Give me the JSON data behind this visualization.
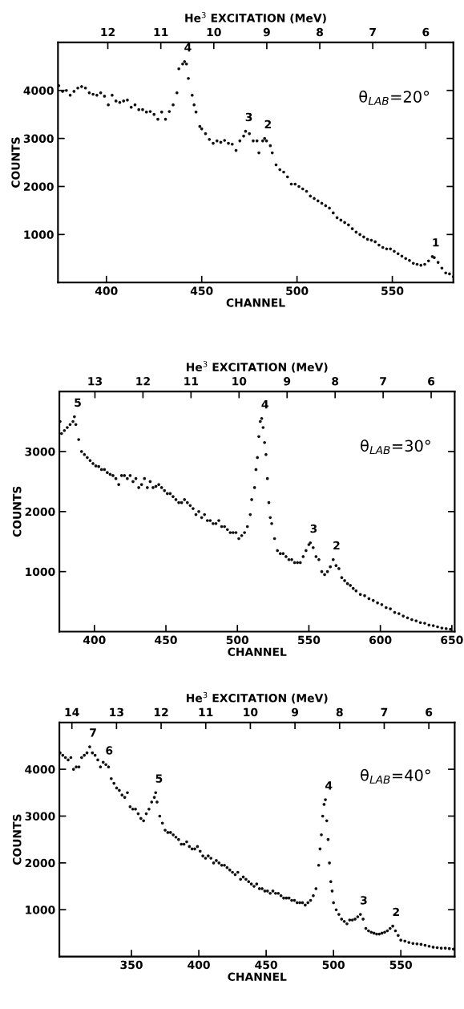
{
  "chart_data": [
    {
      "type": "scatter",
      "xlabel": "CHANNEL",
      "ylabel": "COUNTS",
      "x2label": "He$^{3}$ EXCITATION (MeV)",
      "marker": "circle",
      "grid": false,
      "legend": false,
      "xlim": [
        374.6,
        582
      ],
      "xticks": [
        400,
        450,
        500,
        550
      ],
      "ylim": [
        0,
        5000
      ],
      "yticks": [
        1000,
        2000,
        3000,
        4000
      ],
      "x2lim": [
        12.94,
        5.48
      ],
      "x2ticks": [
        12,
        11,
        10,
        9,
        8,
        7,
        6
      ],
      "series": [
        {
          "color": "#111111",
          "x": [
            375,
            377,
            379,
            381,
            383,
            385,
            387,
            389,
            391,
            393,
            395,
            397,
            399,
            401,
            403,
            405,
            407,
            409,
            411,
            413,
            415,
            417,
            419,
            421,
            423,
            425,
            427,
            429,
            431,
            433,
            435,
            437,
            438,
            440,
            441,
            442,
            443,
            445,
            446,
            447,
            449,
            450,
            452,
            454,
            456,
            458,
            460,
            462,
            464,
            466,
            468,
            470,
            472,
            473,
            475,
            477,
            479,
            480,
            482,
            483,
            484,
            486,
            487,
            489,
            491,
            493,
            495,
            497,
            499,
            501,
            503,
            505,
            507,
            509,
            511,
            513,
            515,
            517,
            519,
            521,
            523,
            525,
            527,
            529,
            531,
            533,
            535,
            537,
            539,
            541,
            543,
            545,
            547,
            549,
            551,
            553,
            555,
            557,
            559,
            561,
            563,
            565,
            567,
            569,
            571,
            572,
            574,
            576,
            578,
            580,
            582
          ],
          "values": [
            4100,
            3980,
            4000,
            3900,
            3980,
            4050,
            4080,
            4050,
            3950,
            3920,
            3900,
            3950,
            3880,
            3700,
            3900,
            3780,
            3750,
            3780,
            3800,
            3650,
            3700,
            3600,
            3600,
            3550,
            3560,
            3500,
            3400,
            3550,
            3400,
            3560,
            3700,
            3950,
            4450,
            4550,
            4600,
            4550,
            4250,
            3900,
            3700,
            3550,
            3250,
            3200,
            3100,
            2980,
            2900,
            2950,
            2920,
            2960,
            2900,
            2880,
            2750,
            2950,
            3050,
            3150,
            3100,
            2950,
            2950,
            2700,
            2950,
            3000,
            2950,
            2850,
            2700,
            2450,
            2350,
            2300,
            2200,
            2050,
            2050,
            2000,
            1950,
            1900,
            1800,
            1750,
            1700,
            1650,
            1600,
            1550,
            1450,
            1350,
            1300,
            1250,
            1200,
            1120,
            1050,
            1000,
            950,
            900,
            880,
            850,
            780,
            730,
            700,
            700,
            650,
            600,
            550,
            500,
            460,
            400,
            380,
            360,
            380,
            450,
            540,
            520,
            420,
            300,
            200,
            180,
            120
          ]
        }
      ],
      "annotations": [
        {
          "text": "4",
          "x": 441,
          "y": 4600
        },
        {
          "text": "3",
          "x": 473,
          "y": 3150
        },
        {
          "text": "2",
          "x": 483,
          "y": 3000
        },
        {
          "text": "1",
          "x": 571,
          "y": 540
        },
        "θ$_{LAB}$=20°"
      ]
    },
    {
      "type": "scatter",
      "xlabel": "CHANNEL",
      "ylabel": "COUNTS",
      "x2label": "He$^{3}$ EXCITATION (MeV)",
      "marker": "circle",
      "grid": false,
      "legend": false,
      "xlim": [
        375.5,
        652
      ],
      "xticks": [
        400,
        450,
        500,
        550,
        600,
        650
      ],
      "ylim": [
        0,
        4000
      ],
      "yticks": [
        1000,
        2000,
        3000
      ],
      "x2lim": [
        13.74,
        5.51
      ],
      "x2ticks": [
        13,
        12,
        11,
        10,
        9,
        8,
        7,
        6
      ],
      "series": [
        {
          "color": "#111111",
          "x": [
            376,
            377,
            379,
            381,
            383,
            385,
            386,
            387,
            389,
            391,
            393,
            395,
            397,
            399,
            401,
            403,
            405,
            407,
            409,
            411,
            413,
            415,
            417,
            419,
            421,
            423,
            425,
            427,
            429,
            431,
            433,
            435,
            437,
            439,
            441,
            443,
            445,
            447,
            449,
            451,
            453,
            455,
            457,
            459,
            461,
            463,
            465,
            467,
            469,
            471,
            473,
            475,
            477,
            479,
            481,
            483,
            485,
            487,
            489,
            491,
            493,
            495,
            497,
            499,
            501,
            503,
            505,
            507,
            509,
            510,
            512,
            513,
            514,
            515,
            516,
            517,
            518,
            519,
            520,
            521,
            522,
            523,
            524,
            526,
            528,
            530,
            532,
            534,
            536,
            538,
            540,
            542,
            544,
            546,
            548,
            550,
            551,
            553,
            555,
            557,
            559,
            561,
            563,
            565,
            567,
            569,
            571,
            573,
            575,
            577,
            579,
            581,
            583,
            586,
            589,
            592,
            595,
            598,
            601,
            604,
            607,
            610,
            613,
            616,
            619,
            622,
            625,
            628,
            631,
            634,
            637,
            640,
            643,
            646,
            649
          ],
          "values": [
            3500,
            3300,
            3350,
            3400,
            3450,
            3500,
            3580,
            3450,
            3200,
            3000,
            2950,
            2900,
            2850,
            2800,
            2760,
            2750,
            2700,
            2700,
            2650,
            2620,
            2600,
            2550,
            2450,
            2600,
            2600,
            2550,
            2600,
            2500,
            2550,
            2400,
            2450,
            2550,
            2400,
            2500,
            2400,
            2420,
            2450,
            2400,
            2350,
            2300,
            2300,
            2250,
            2200,
            2150,
            2150,
            2200,
            2150,
            2100,
            2050,
            1950,
            2000,
            1900,
            1950,
            1850,
            1850,
            1800,
            1800,
            1850,
            1750,
            1750,
            1700,
            1650,
            1650,
            1650,
            1550,
            1600,
            1650,
            1750,
            1950,
            2200,
            2400,
            2700,
            2900,
            3250,
            3500,
            3550,
            3400,
            3150,
            2950,
            2550,
            2150,
            1900,
            1800,
            1550,
            1350,
            1300,
            1300,
            1250,
            1200,
            1200,
            1150,
            1150,
            1150,
            1250,
            1350,
            1450,
            1480,
            1400,
            1250,
            1200,
            1000,
            950,
            1000,
            1080,
            1200,
            1100,
            1050,
            900,
            850,
            800,
            770,
            720,
            680,
            620,
            600,
            550,
            520,
            480,
            450,
            400,
            380,
            320,
            300,
            260,
            230,
            200,
            180,
            150,
            140,
            110,
            100,
            80,
            60,
            50,
            40
          ]
        }
      ],
      "annotations": [
        {
          "text": "5",
          "x": 386,
          "y": 3580
        },
        {
          "text": "4",
          "x": 517,
          "y": 3550
        },
        {
          "text": "3",
          "x": 551,
          "y": 1480
        },
        {
          "text": "2",
          "x": 567,
          "y": 1200
        },
        "θ$_{LAB}$=30°"
      ]
    },
    {
      "type": "scatter",
      "xlabel": "CHANNEL",
      "ylabel": "COUNTS",
      "x2label": "He$^{3}$ EXCITATION (MeV)",
      "marker": "circle",
      "grid": false,
      "legend": false,
      "xlim": [
        296.5,
        590
      ],
      "xticks": [
        350,
        400,
        450,
        500,
        550
      ],
      "ylim": [
        0,
        5000
      ],
      "yticks": [
        1000,
        2000,
        3000,
        4000
      ],
      "x2lim": [
        14.28,
        5.42
      ],
      "x2ticks": [
        14,
        13,
        12,
        11,
        10,
        9,
        8,
        7,
        6
      ],
      "series": [
        {
          "color": "#111111",
          "x": [
            297,
            299,
            301,
            303,
            305,
            307,
            309,
            311,
            313,
            315,
            317,
            319,
            321,
            323,
            325,
            327,
            329,
            331,
            333,
            335,
            337,
            339,
            341,
            343,
            345,
            347,
            349,
            351,
            353,
            355,
            357,
            359,
            361,
            363,
            365,
            367,
            368,
            369,
            371,
            373,
            375,
            377,
            379,
            381,
            383,
            385,
            387,
            389,
            391,
            393,
            395,
            397,
            399,
            401,
            403,
            405,
            407,
            409,
            411,
            413,
            415,
            417,
            419,
            421,
            423,
            425,
            427,
            429,
            431,
            433,
            435,
            437,
            439,
            441,
            443,
            445,
            447,
            449,
            451,
            453,
            455,
            457,
            459,
            461,
            463,
            465,
            467,
            469,
            471,
            473,
            475,
            477,
            479,
            481,
            483,
            485,
            487,
            489,
            490,
            491,
            492,
            493,
            494,
            495,
            496,
            497,
            498,
            499,
            500,
            502,
            504,
            506,
            508,
            510,
            512,
            514,
            516,
            518,
            520,
            522,
            524,
            526,
            528,
            530,
            532,
            534,
            536,
            538,
            540,
            542,
            544,
            546,
            548,
            550,
            553,
            556,
            559,
            562,
            565,
            568,
            571,
            574,
            577,
            580,
            583,
            586,
            589
          ],
          "values": [
            4350,
            4300,
            4250,
            4200,
            4250,
            4000,
            4050,
            4050,
            4250,
            4300,
            4350,
            4480,
            4350,
            4300,
            4200,
            4050,
            4150,
            4100,
            4050,
            3800,
            3700,
            3600,
            3550,
            3450,
            3400,
            3500,
            3200,
            3150,
            3150,
            3050,
            2950,
            2900,
            3050,
            3150,
            3300,
            3400,
            3500,
            3300,
            3000,
            2850,
            2700,
            2650,
            2650,
            2600,
            2550,
            2500,
            2400,
            2400,
            2450,
            2350,
            2300,
            2300,
            2350,
            2250,
            2150,
            2100,
            2150,
            2100,
            2000,
            2050,
            2000,
            1950,
            1950,
            1900,
            1850,
            1800,
            1750,
            1800,
            1650,
            1700,
            1650,
            1600,
            1550,
            1500,
            1550,
            1450,
            1450,
            1400,
            1400,
            1350,
            1400,
            1350,
            1350,
            1300,
            1250,
            1250,
            1250,
            1200,
            1200,
            1150,
            1150,
            1150,
            1100,
            1150,
            1200,
            1300,
            1450,
            1950,
            2300,
            2600,
            3000,
            3250,
            3350,
            2900,
            2500,
            2000,
            1600,
            1400,
            1150,
            1000,
            900,
            800,
            750,
            700,
            780,
            780,
            800,
            850,
            900,
            800,
            600,
            550,
            520,
            500,
            480,
            480,
            500,
            520,
            550,
            600,
            650,
            550,
            450,
            350,
            330,
            300,
            280,
            270,
            260,
            240,
            220,
            200,
            190,
            180,
            180,
            170,
            160
          ]
        }
      ],
      "annotations": [
        {
          "text": "7",
          "x": 319,
          "y": 4480
        },
        {
          "text": "6",
          "x": 331,
          "y": 4100
        },
        {
          "text": "5",
          "x": 368,
          "y": 3500
        },
        {
          "text": "4",
          "x": 494,
          "y": 3350
        },
        {
          "text": "3",
          "x": 520,
          "y": 900
        },
        {
          "text": "2",
          "x": 544,
          "y": 650
        },
        "θ$_{LAB}$=40°"
      ]
    }
  ]
}
